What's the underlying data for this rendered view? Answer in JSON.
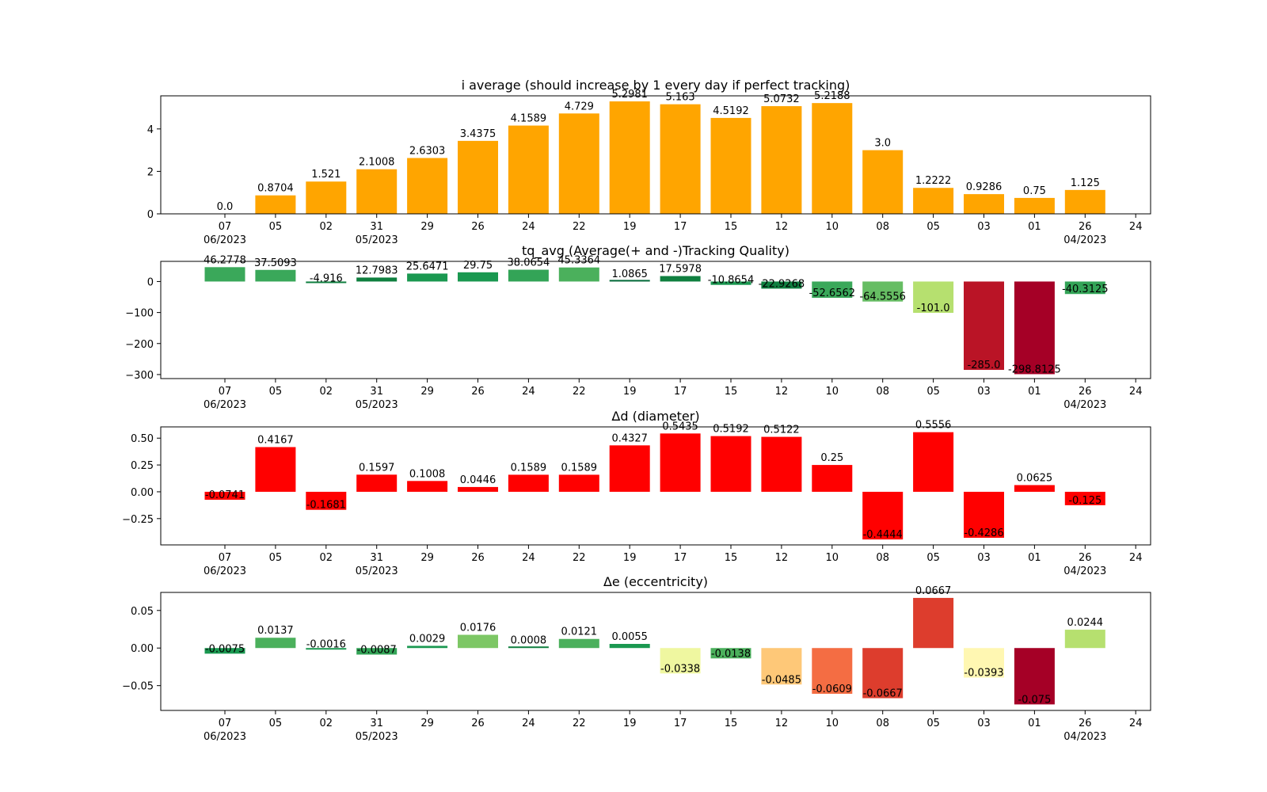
{
  "x_ticks": {
    "days": [
      "07",
      "05",
      "02",
      "31",
      "29",
      "26",
      "24",
      "22",
      "19",
      "17",
      "15",
      "12",
      "10",
      "08",
      "05",
      "03",
      "01",
      "26",
      "24"
    ],
    "months": [
      {
        "tick": 0,
        "label": "06/2023"
      },
      {
        "tick": 3,
        "label": "05/2023"
      },
      {
        "tick": 17,
        "label": "04/2023"
      }
    ]
  },
  "chart_data": [
    {
      "type": "bar",
      "title": "i average (should increase by 1 every day if perfect tracking)",
      "categories": [
        "07",
        "05",
        "02",
        "31",
        "29",
        "26",
        "24",
        "22",
        "19",
        "17",
        "15",
        "12",
        "10",
        "08",
        "05",
        "03",
        "01",
        "26"
      ],
      "values": [
        0.0,
        0.8704,
        1.521,
        2.1008,
        2.6303,
        3.4375,
        4.1589,
        4.729,
        5.2981,
        5.163,
        4.5192,
        5.0732,
        5.2188,
        3.0,
        1.2222,
        0.9286,
        0.75,
        1.125
      ],
      "value_labels": [
        "0.0",
        "0.8704",
        "1.521",
        "2.1008",
        "2.6303",
        "3.4375",
        "4.1589",
        "4.729",
        "5.2981",
        "5.163",
        "4.5192",
        "5.0732",
        "5.2188",
        "3.0",
        "1.2222",
        "0.9286",
        "0.75",
        "1.125"
      ],
      "colors": [
        "#FFA500",
        "#FFA500",
        "#FFA500",
        "#FFA500",
        "#FFA500",
        "#FFA500",
        "#FFA500",
        "#FFA500",
        "#FFA500",
        "#FFA500",
        "#FFA500",
        "#FFA500",
        "#FFA500",
        "#FFA500",
        "#FFA500",
        "#FFA500",
        "#FFA500",
        "#FFA500"
      ],
      "ylim": [
        0,
        5.56
      ],
      "yticks": [
        0,
        2,
        4
      ],
      "ytick_labels": [
        "0",
        "2",
        "4"
      ],
      "grid": false
    },
    {
      "type": "bar",
      "title": "tq_avg (Average(+ and -)Tracking Quality)",
      "categories": [
        "07",
        "05",
        "02",
        "31",
        "29",
        "26",
        "24",
        "22",
        "19",
        "17",
        "15",
        "12",
        "10",
        "08",
        "05",
        "03",
        "01",
        "26"
      ],
      "values": [
        46.2778,
        37.5093,
        -4.916,
        12.7983,
        25.6471,
        29.75,
        38.0654,
        45.3364,
        1.0865,
        17.5978,
        -10.8654,
        -22.9268,
        -52.6562,
        -64.5556,
        -101.0,
        -285.0,
        -298.8125,
        -40.3125
      ],
      "value_labels": [
        "46.2778",
        "37.5093",
        "-4.916",
        "12.7983",
        "25.6471",
        "29.75",
        "38.0654",
        "45.3364",
        "1.0865",
        "17.5978",
        "-10.8654",
        "-22.9268",
        "-52.6562",
        "-64.5556",
        "-101.0",
        "-285.0",
        "-298.8125",
        "-40.3125"
      ],
      "colors": [
        "#3AA85A",
        "#3AA85A",
        "#0F7F3F",
        "#0F7F3F",
        "#1A9850",
        "#1A9850",
        "#33A457",
        "#4BB05C",
        "#006837",
        "#0F7F3F",
        "#1A9850",
        "#0F7F3F",
        "#3AA85A",
        "#66BD63",
        "#B6E06F",
        "#BA1426",
        "#A50026",
        "#33A457"
      ],
      "ylim": [
        -313,
        65
      ],
      "yticks": [
        0,
        -100,
        -200,
        -300
      ],
      "ytick_labels": [
        "0",
        "−100",
        "−200",
        "−300"
      ],
      "grid": false
    },
    {
      "type": "bar",
      "title": "Δd (diameter)",
      "categories": [
        "07",
        "05",
        "02",
        "31",
        "29",
        "26",
        "24",
        "22",
        "19",
        "17",
        "15",
        "12",
        "10",
        "08",
        "05",
        "03",
        "01",
        "26"
      ],
      "values": [
        -0.0741,
        0.4167,
        -0.1681,
        0.1597,
        0.1008,
        0.0446,
        0.1589,
        0.1589,
        0.4327,
        0.5435,
        0.5192,
        0.5122,
        0.25,
        -0.4444,
        0.5556,
        -0.4286,
        0.0625,
        -0.125
      ],
      "value_labels": [
        "-0.0741",
        "0.4167",
        "-0.1681",
        "0.1597",
        "0.1008",
        "0.0446",
        "0.1589",
        "0.1589",
        "0.4327",
        "0.5435",
        "0.5192",
        "0.5122",
        "0.25",
        "-0.4444",
        "0.5556",
        "-0.4286",
        "0.0625",
        "-0.125"
      ],
      "colors": [
        "#FF0000",
        "#FF0000",
        "#FF0000",
        "#FF0000",
        "#FF0000",
        "#FF0000",
        "#FF0000",
        "#FF0000",
        "#FF0000",
        "#FF0000",
        "#FF0000",
        "#FF0000",
        "#FF0000",
        "#FF0000",
        "#FF0000",
        "#FF0000",
        "#FF0000",
        "#FF0000"
      ],
      "ylim": [
        -0.495,
        0.605
      ],
      "yticks": [
        0.5,
        0.25,
        0,
        -0.25
      ],
      "ytick_labels": [
        "0.50",
        "0.25",
        "0.00",
        "−0.25"
      ],
      "grid": false
    },
    {
      "type": "bar",
      "title": "Δe (eccentricity)",
      "categories": [
        "07",
        "05",
        "02",
        "31",
        "29",
        "26",
        "24",
        "22",
        "19",
        "17",
        "15",
        "12",
        "10",
        "08",
        "05",
        "03",
        "01",
        "26"
      ],
      "values": [
        -0.0075,
        0.0137,
        -0.0016,
        -0.0087,
        0.0029,
        0.0176,
        0.0008,
        0.0121,
        0.0055,
        -0.0338,
        -0.0138,
        -0.0485,
        -0.0609,
        -0.0667,
        0.0667,
        -0.0393,
        -0.075,
        0.0244
      ],
      "value_labels": [
        "-0.0075",
        "0.0137",
        "-0.0016",
        "-0.0087",
        "0.0029",
        "0.0176",
        "0.0008",
        "0.0121",
        "0.0055",
        "-0.0338",
        "-0.0138",
        "-0.0485",
        "-0.0609",
        "-0.0667",
        "0.0667",
        "-0.0393",
        "-0.075",
        "0.0244"
      ],
      "colors": [
        "#1A9850",
        "#4BB05C",
        "#1A9850",
        "#33A457",
        "#1A9850",
        "#7DC765",
        "#0F7F3F",
        "#4BB05C",
        "#1A9850",
        "#EFF7A0",
        "#4BB05C",
        "#FEC878",
        "#F46D43",
        "#DD3D2D",
        "#DD3D2D",
        "#FFF7B2",
        "#A50026",
        "#B6E06F"
      ],
      "ylim": [
        -0.083,
        0.074
      ],
      "yticks": [
        0.05,
        0,
        -0.05
      ],
      "ytick_labels": [
        "0.05",
        "0.00",
        "−0.05"
      ],
      "grid": false
    }
  ]
}
